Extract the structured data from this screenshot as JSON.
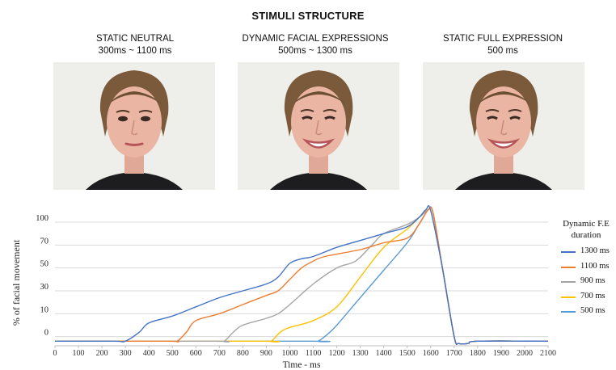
{
  "title": "STIMULI STRUCTURE",
  "panels": [
    {
      "label": "STATIC NEUTRAL",
      "timing": "300ms ~ 1100 ms",
      "expression": "neutral"
    },
    {
      "label": "DYNAMIC FACIAL EXPRESSIONS",
      "timing": "500ms ~ 1300 ms",
      "expression": "smile"
    },
    {
      "label": "STATIC FULL EXPRESSION",
      "timing": "500 ms",
      "expression": "smile"
    }
  ],
  "legend": {
    "title_line1": "Dynamic F.E",
    "title_line2": "duration"
  },
  "chart_data": {
    "type": "line",
    "xlabel": "Time - ms",
    "ylabel": "% of facial movement",
    "xlim": [
      0,
      2100
    ],
    "x_ticks": [
      "0",
      "100",
      "200",
      "300",
      "400",
      "500",
      "600",
      "700",
      "800",
      "900",
      "1000",
      "1100",
      "1200",
      "1300",
      "1400",
      "1500",
      "1600",
      "1700",
      "1800",
      "1900",
      "2000",
      "2100"
    ],
    "y_ticks": [
      {
        "label": "0",
        "level": 0
      },
      {
        "label": "10",
        "level": 1
      },
      {
        "label": "30",
        "level": 2
      },
      {
        "label": "50",
        "level": 3
      },
      {
        "label": "70",
        "level": 4
      },
      {
        "label": "100",
        "level": 5
      }
    ],
    "ylim_levels": [
      -0.4,
      5.6
    ],
    "grid": true,
    "legend_position": "right",
    "series": [
      {
        "name": "1300 ms",
        "color": "#4472c4",
        "points": [
          [
            0,
            -0.2
          ],
          [
            250,
            -0.2
          ],
          [
            300,
            -0.2
          ],
          [
            360,
            0.2
          ],
          [
            400,
            0.6
          ],
          [
            500,
            0.9
          ],
          [
            600,
            1.3
          ],
          [
            700,
            1.7
          ],
          [
            800,
            2.0
          ],
          [
            900,
            2.3
          ],
          [
            950,
            2.6
          ],
          [
            1000,
            3.2
          ],
          [
            1050,
            3.4
          ],
          [
            1100,
            3.5
          ],
          [
            1200,
            3.9
          ],
          [
            1300,
            4.2
          ],
          [
            1400,
            4.5
          ],
          [
            1500,
            4.8
          ],
          [
            1550,
            5.2
          ],
          [
            1580,
            5.55
          ],
          [
            1600,
            5.5
          ],
          [
            1650,
            3.0
          ],
          [
            1700,
            0.0
          ],
          [
            1720,
            -0.3
          ],
          [
            1760,
            -0.3
          ],
          [
            1800,
            -0.2
          ],
          [
            2100,
            -0.2
          ]
        ]
      },
      {
        "name": "1100 ms",
        "color": "#ed7d31",
        "points": [
          [
            0,
            -0.2
          ],
          [
            480,
            -0.2
          ],
          [
            520,
            -0.2
          ],
          [
            560,
            0.2
          ],
          [
            600,
            0.7
          ],
          [
            700,
            1.0
          ],
          [
            800,
            1.4
          ],
          [
            900,
            1.8
          ],
          [
            950,
            2.0
          ],
          [
            1000,
            2.5
          ],
          [
            1050,
            3.0
          ],
          [
            1100,
            3.3
          ],
          [
            1150,
            3.5
          ],
          [
            1300,
            3.8
          ],
          [
            1400,
            4.1
          ],
          [
            1500,
            4.3
          ],
          [
            1550,
            4.9
          ],
          [
            1590,
            5.55
          ],
          [
            1610,
            5.4
          ],
          [
            1650,
            3.0
          ],
          [
            1700,
            0.0
          ],
          [
            1720,
            -0.3
          ],
          [
            1760,
            -0.3
          ],
          [
            1800,
            -0.2
          ],
          [
            2100,
            -0.2
          ]
        ]
      },
      {
        "name": "900 ms",
        "color": "#a5a5a5",
        "points": [
          [
            0,
            -0.2
          ],
          [
            680,
            -0.2
          ],
          [
            720,
            -0.2
          ],
          [
            760,
            0.2
          ],
          [
            800,
            0.5
          ],
          [
            900,
            0.8
          ],
          [
            950,
            1.0
          ],
          [
            1000,
            1.4
          ],
          [
            1100,
            2.3
          ],
          [
            1200,
            3.0
          ],
          [
            1280,
            3.3
          ],
          [
            1350,
            4.0
          ],
          [
            1400,
            4.5
          ],
          [
            1500,
            4.9
          ],
          [
            1550,
            5.2
          ],
          [
            1590,
            5.55
          ],
          [
            1610,
            5.4
          ],
          [
            1650,
            3.0
          ],
          [
            1700,
            0.0
          ],
          [
            1720,
            -0.3
          ],
          [
            1760,
            -0.3
          ],
          [
            1800,
            -0.2
          ],
          [
            2100,
            -0.2
          ]
        ]
      },
      {
        "name": "700 ms",
        "color": "#ffc000",
        "points": [
          [
            0,
            -0.2
          ],
          [
            880,
            -0.2
          ],
          [
            920,
            -0.2
          ],
          [
            960,
            0.2
          ],
          [
            1000,
            0.4
          ],
          [
            1100,
            0.7
          ],
          [
            1200,
            1.3
          ],
          [
            1300,
            2.6
          ],
          [
            1400,
            3.9
          ],
          [
            1500,
            4.7
          ],
          [
            1550,
            5.2
          ],
          [
            1590,
            5.55
          ],
          [
            1610,
            5.4
          ],
          [
            1650,
            3.0
          ],
          [
            1700,
            0.0
          ],
          [
            1720,
            -0.3
          ],
          [
            1760,
            -0.3
          ],
          [
            1800,
            -0.2
          ],
          [
            2100,
            -0.2
          ]
        ]
      },
      {
        "name": "500 ms",
        "color": "#5b9bd5",
        "points": [
          [
            0,
            -0.2
          ],
          [
            1080,
            -0.2
          ],
          [
            1120,
            -0.2
          ],
          [
            1160,
            0.1
          ],
          [
            1200,
            0.5
          ],
          [
            1300,
            1.7
          ],
          [
            1400,
            2.9
          ],
          [
            1500,
            4.1
          ],
          [
            1550,
            4.9
          ],
          [
            1590,
            5.55
          ],
          [
            1610,
            5.4
          ],
          [
            1650,
            3.0
          ],
          [
            1700,
            0.0
          ],
          [
            1720,
            -0.3
          ],
          [
            1760,
            -0.3
          ],
          [
            1800,
            -0.2
          ],
          [
            2100,
            -0.2
          ]
        ]
      }
    ]
  }
}
